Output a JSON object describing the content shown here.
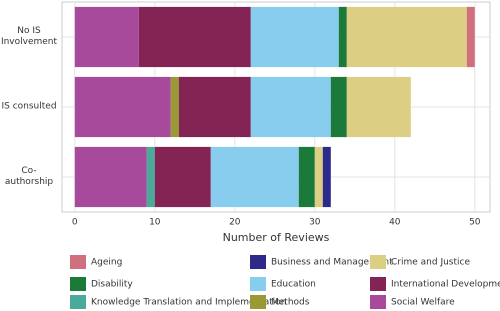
{
  "chart_data": {
    "type": "stacked_bar_horizontal",
    "x_label": "Number of Reviews",
    "categories": [
      "No IS Involvement",
      "IS consulted",
      "Co-authorship"
    ],
    "series": [
      {
        "name": "Ageing",
        "color": "#d0707e",
        "values": [
          1,
          0,
          0
        ]
      },
      {
        "name": "Business and Management",
        "color": "#2d2a8a",
        "values": [
          0,
          0,
          1
        ]
      },
      {
        "name": "Crime and Justice",
        "color": "#dccf84",
        "values": [
          15,
          8,
          1
        ]
      },
      {
        "name": "Disability",
        "color": "#1b7a3a",
        "values": [
          1,
          2,
          2
        ]
      },
      {
        "name": "Education",
        "color": "#89cdee",
        "values": [
          11,
          10,
          11
        ]
      },
      {
        "name": "International Development",
        "color": "#832455",
        "values": [
          14,
          9,
          7
        ]
      },
      {
        "name": "Knowledge Translation and Implementation",
        "color": "#4aab9b",
        "values": [
          0,
          0,
          1
        ]
      },
      {
        "name": "Methods",
        "color": "#999a33",
        "values": [
          0,
          1,
          0
        ]
      },
      {
        "name": "Social Welfare",
        "color": "#a84a9b",
        "values": [
          8,
          12,
          9
        ]
      }
    ],
    "xlim": [
      -1.6,
      51.9
    ],
    "xticks": [
      0,
      10,
      20,
      30,
      40,
      50
    ],
    "grid": true,
    "legend": "bottom"
  }
}
